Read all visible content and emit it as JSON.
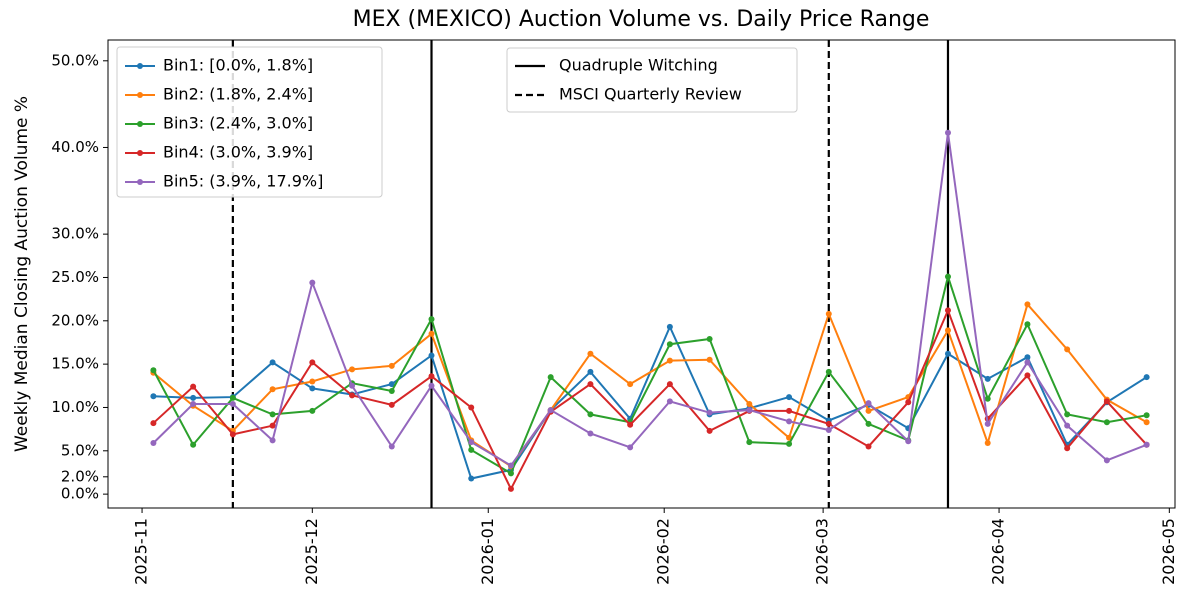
{
  "chart_data": {
    "type": "line",
    "title": "MEX (MEXICO) Auction Volume vs. Daily Price Range",
    "y_label": "Weekly Median Closing Auction Volume %",
    "x": [
      "2025-11-03",
      "2025-11-10",
      "2025-11-17",
      "2025-11-24",
      "2025-12-01",
      "2025-12-08",
      "2025-12-15",
      "2025-12-22",
      "2025-12-29",
      "2026-01-05",
      "2026-01-12",
      "2026-01-19",
      "2026-01-26",
      "2026-02-02",
      "2026-02-09",
      "2026-02-16",
      "2026-02-23",
      "2026-03-02",
      "2026-03-09",
      "2026-03-16",
      "2026-03-23",
      "2026-03-30",
      "2026-04-06",
      "2026-04-13",
      "2026-04-20",
      "2026-04-27"
    ],
    "series": [
      {
        "name": "Bin1: [0.0%, 1.8%]",
        "color": "#1f77b4",
        "values": [
          11.3,
          11.1,
          11.2,
          15.2,
          12.2,
          11.5,
          12.7,
          16.0,
          1.8,
          2.8,
          9.7,
          14.1,
          8.7,
          19.3,
          9.2,
          9.9,
          11.2,
          8.5,
          10.3,
          7.6,
          16.2,
          13.3,
          15.8,
          5.7,
          10.6,
          13.5
        ]
      },
      {
        "name": "Bin2: (1.8%, 2.4%]",
        "color": "#ff7f0e",
        "values": [
          14.0,
          10.2,
          7.3,
          12.1,
          13.0,
          14.4,
          14.8,
          18.5,
          6.2,
          3.2,
          9.7,
          16.2,
          12.7,
          15.4,
          15.5,
          10.4,
          6.5,
          20.8,
          9.6,
          11.2,
          18.9,
          5.9,
          21.9,
          16.7,
          10.9,
          8.3
        ]
      },
      {
        "name": "Bin3: (2.4%, 3.0%]",
        "color": "#2ca02c",
        "values": [
          14.3,
          5.7,
          11.1,
          9.2,
          9.6,
          12.8,
          11.9,
          20.2,
          5.1,
          2.4,
          13.5,
          9.2,
          8.3,
          17.3,
          17.9,
          6.0,
          5.8,
          14.1,
          8.1,
          6.2,
          25.1,
          11.0,
          19.6,
          9.2,
          8.3,
          9.1
        ]
      },
      {
        "name": "Bin4: (3.0%, 3.9%]",
        "color": "#d62728",
        "values": [
          8.2,
          12.4,
          6.9,
          7.9,
          15.2,
          11.4,
          10.3,
          13.6,
          10.0,
          0.6,
          9.5,
          12.7,
          8.0,
          12.7,
          7.3,
          9.6,
          9.6,
          8.1,
          5.5,
          10.6,
          21.2,
          8.7,
          13.7,
          5.3,
          10.7,
          5.7
        ]
      },
      {
        "name": "Bin5: (3.9%, 17.9%]",
        "color": "#9467bd",
        "values": [
          5.9,
          10.4,
          10.4,
          6.2,
          24.4,
          12.5,
          5.5,
          12.5,
          6.0,
          3.3,
          9.7,
          7.0,
          5.4,
          10.7,
          9.4,
          9.7,
          8.4,
          7.4,
          10.5,
          6.1,
          41.7,
          8.1,
          15.2,
          7.9,
          3.9,
          5.7
        ]
      }
    ],
    "vlines": [
      {
        "name": "Quadruple Witching",
        "style": "solid",
        "color": "#000000",
        "x": [
          "2025-12-22",
          "2026-03-23"
        ]
      },
      {
        "name": "MSCI Quarterly Review",
        "style": "dashed",
        "color": "#000000",
        "x": [
          "2025-11-17",
          "2026-03-02"
        ]
      }
    ],
    "xlim": [
      "2025-10-26",
      "2026-05-02"
    ],
    "xticks": [
      "2025-11",
      "2025-12",
      "2026-01",
      "2026-02",
      "2026-03",
      "2026-04",
      "2026-05"
    ],
    "ylim": [
      -1.6,
      52.4
    ],
    "yticks": [
      {
        "value": 0,
        "label": "0.0%"
      },
      {
        "value": 2,
        "label": "2.0%"
      },
      {
        "value": 5,
        "label": "5.0%"
      },
      {
        "value": 10,
        "label": "10.0%"
      },
      {
        "value": 15,
        "label": "15.0%"
      },
      {
        "value": 20,
        "label": "20.0%"
      },
      {
        "value": 25,
        "label": "25.0%"
      },
      {
        "value": 30,
        "label": "30.0%"
      },
      {
        "value": 40,
        "label": "40.0%"
      },
      {
        "value": 50,
        "label": "50.0%"
      }
    ],
    "legend": "upper left",
    "grid": false
  }
}
